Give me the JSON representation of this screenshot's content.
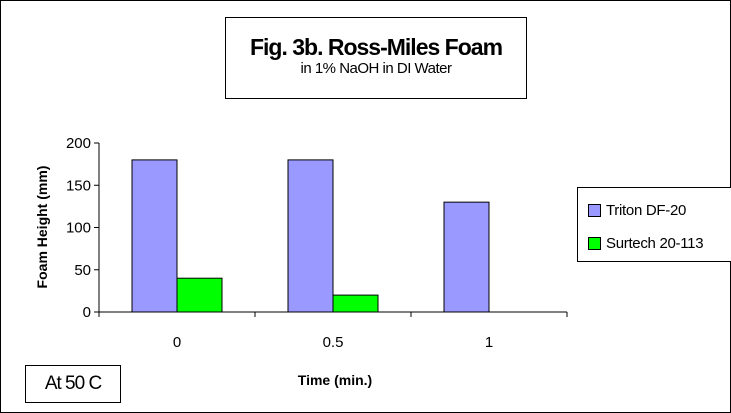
{
  "chart_data": {
    "type": "bar",
    "title": "Fig. 3b. Ross-Miles Foam",
    "subtitle": "in 1% NaOH in DI Water",
    "xlabel": "Time (min.)",
    "ylabel": "Foam Height (mm)",
    "categories": [
      "0",
      "0.5",
      "1"
    ],
    "series": [
      {
        "name": "Triton DF-20",
        "values": [
          180,
          180,
          130
        ],
        "color": "#9999ff"
      },
      {
        "name": "Surtech 20-113",
        "values": [
          40,
          20,
          null
        ],
        "color": "#00ff00"
      }
    ],
    "ylim": [
      0,
      200
    ],
    "yticks": [
      "0",
      "50",
      "100",
      "150",
      "200"
    ],
    "grid": false,
    "legend_position": "right"
  },
  "annotation": "At 50 C"
}
